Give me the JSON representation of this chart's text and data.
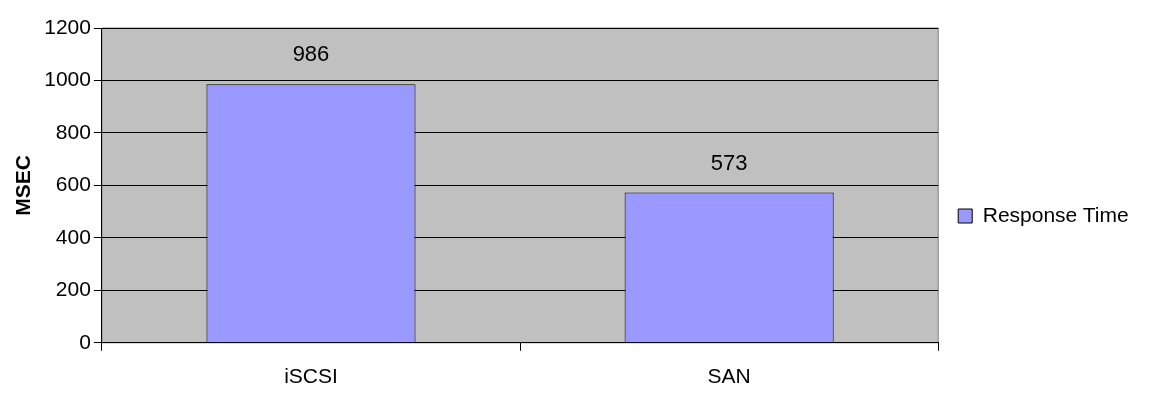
{
  "chart_data": {
    "type": "bar",
    "ylabel": "MSEC",
    "categories": [
      "iSCSI",
      "SAN"
    ],
    "series": [
      {
        "name": "Response Time",
        "color": "#9999ff",
        "values": [
          986,
          573
        ]
      }
    ],
    "ylim": [
      0,
      1200
    ],
    "yticks": [
      0,
      200,
      400,
      600,
      800,
      1000,
      1200
    ],
    "grid": "y",
    "legend": "right",
    "data_labels": true
  }
}
